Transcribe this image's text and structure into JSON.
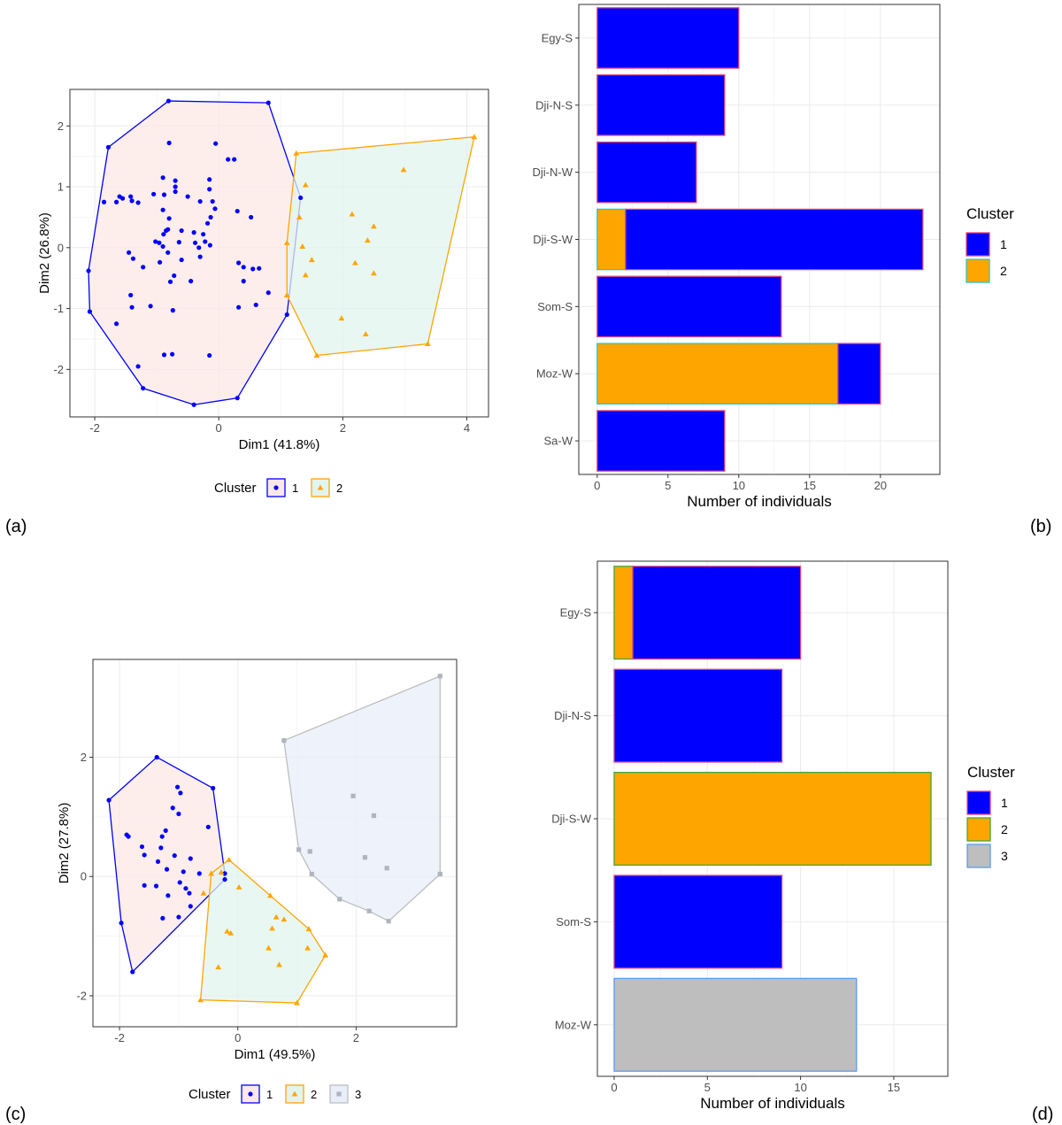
{
  "panel_labels": {
    "a": "(a)",
    "b": "(b)",
    "c": "(c)",
    "d": "(d)"
  },
  "colors": {
    "cluster1": "#0000FF",
    "cluster2": "#FFA500",
    "cluster3": "#BEBEBE",
    "hull1": "#FCE8E6",
    "hull2": "#E2F4EF",
    "hull3": "#E8EEFA",
    "point3": "#B0B4BC",
    "outline1": "#E0457A",
    "outline2_b": "#2EC4C4",
    "outline2_d": "#3DAA3D",
    "outline3_d": "#5C9AF0",
    "grid": "#EBEBEB",
    "frame": "#333333"
  },
  "chart_data": [
    {
      "id": "a",
      "type": "scatter",
      "title": "",
      "xlabel": "Dim1 (41.8%)",
      "ylabel": "Dim2 (26.8%)",
      "xlim": [
        -2.4,
        4.35
      ],
      "ylim": [
        -2.78,
        2.6
      ],
      "xticks": [
        -2,
        0,
        2,
        4
      ],
      "xtick_labels": [
        "-2",
        "0",
        "2",
        "4"
      ],
      "yticks": [
        -2,
        -1,
        0,
        1,
        2
      ],
      "ytick_labels": [
        "-2",
        "-1",
        "0",
        "1",
        "2"
      ],
      "grid": true,
      "legend": {
        "title": "Cluster",
        "position": "bottom",
        "entries": [
          "1",
          "2"
        ]
      },
      "series": [
        {
          "name": "1",
          "marker": "circle",
          "points": [
            [
              -0.81,
              2.41
            ],
            [
              0.8,
              2.38
            ],
            [
              -1.78,
              1.65
            ],
            [
              1.32,
              0.82
            ],
            [
              1.1,
              -1.1
            ],
            [
              0.3,
              -2.47
            ],
            [
              -0.4,
              -2.58
            ],
            [
              -1.22,
              -2.31
            ],
            [
              -2.08,
              -1.05
            ],
            [
              -2.1,
              -0.38
            ],
            [
              -0.8,
              1.72
            ],
            [
              -0.05,
              1.71
            ],
            [
              0.15,
              1.45
            ],
            [
              0.25,
              1.45
            ],
            [
              -0.9,
              1.15
            ],
            [
              -0.7,
              1.1
            ],
            [
              -0.7,
              1.0
            ],
            [
              -0.7,
              0.92
            ],
            [
              -0.15,
              1.12
            ],
            [
              -0.15,
              0.96
            ],
            [
              -1.6,
              0.84
            ],
            [
              -1.55,
              0.81
            ],
            [
              -1.42,
              0.84
            ],
            [
              -1.4,
              0.77
            ],
            [
              -1.65,
              0.75
            ],
            [
              -1.85,
              0.75
            ],
            [
              -1.3,
              0.74
            ],
            [
              -1.05,
              0.88
            ],
            [
              -0.88,
              0.87
            ],
            [
              -0.5,
              0.84
            ],
            [
              -0.3,
              0.76
            ],
            [
              -0.1,
              0.76
            ],
            [
              -0.06,
              0.64
            ],
            [
              0.3,
              0.6
            ],
            [
              0.52,
              0.5
            ],
            [
              -0.13,
              0.5
            ],
            [
              -0.18,
              0.4
            ],
            [
              -0.9,
              0.62
            ],
            [
              -0.8,
              0.48
            ],
            [
              -0.82,
              0.3
            ],
            [
              -0.85,
              0.28
            ],
            [
              -0.89,
              0.22
            ],
            [
              -0.6,
              0.28
            ],
            [
              -0.4,
              0.25
            ],
            [
              -0.25,
              0.22
            ],
            [
              -0.22,
              0.1
            ],
            [
              -0.14,
              0.04
            ],
            [
              -0.38,
              0.08
            ],
            [
              -0.64,
              0.09
            ],
            [
              -0.96,
              0.08
            ],
            [
              -1.02,
              0.1
            ],
            [
              -0.9,
              0.02
            ],
            [
              -0.82,
              -0.08
            ],
            [
              -1.45,
              -0.08
            ],
            [
              -1.38,
              -0.18
            ],
            [
              -1.22,
              -0.32
            ],
            [
              -0.95,
              -0.24
            ],
            [
              -0.6,
              -0.2
            ],
            [
              -0.32,
              0.0
            ],
            [
              -0.3,
              -0.15
            ],
            [
              -0.72,
              -0.46
            ],
            [
              -0.78,
              -0.56
            ],
            [
              -0.45,
              -0.55
            ],
            [
              0.32,
              -0.25
            ],
            [
              0.4,
              -0.32
            ],
            [
              0.55,
              -0.35
            ],
            [
              0.65,
              -0.34
            ],
            [
              0.4,
              -0.55
            ],
            [
              0.8,
              -0.74
            ],
            [
              0.32,
              -0.98
            ],
            [
              0.6,
              -0.94
            ],
            [
              -1.42,
              -0.78
            ],
            [
              -1.1,
              -0.96
            ],
            [
              -1.4,
              -0.98
            ],
            [
              -0.74,
              -1.03
            ],
            [
              -1.65,
              -1.25
            ],
            [
              -0.75,
              -1.75
            ],
            [
              -0.88,
              -1.76
            ],
            [
              -0.15,
              -1.77
            ],
            [
              -1.3,
              -1.95
            ]
          ],
          "hull": [
            [
              -0.81,
              2.41
            ],
            [
              0.8,
              2.38
            ],
            [
              1.32,
              0.82
            ],
            [
              1.1,
              -1.1
            ],
            [
              0.3,
              -2.47
            ],
            [
              -0.4,
              -2.58
            ],
            [
              -1.22,
              -2.31
            ],
            [
              -2.08,
              -1.05
            ],
            [
              -2.1,
              -0.38
            ],
            [
              -1.78,
              1.65
            ]
          ]
        },
        {
          "name": "2",
          "marker": "triangle",
          "points": [
            [
              4.12,
              1.82
            ],
            [
              1.25,
              1.55
            ],
            [
              2.98,
              1.28
            ],
            [
              1.4,
              1.03
            ],
            [
              1.3,
              0.5
            ],
            [
              2.15,
              0.55
            ],
            [
              2.5,
              0.35
            ],
            [
              2.4,
              0.12
            ],
            [
              1.1,
              0.08
            ],
            [
              1.35,
              0.02
            ],
            [
              1.5,
              -0.2
            ],
            [
              2.2,
              -0.25
            ],
            [
              2.5,
              -0.42
            ],
            [
              1.4,
              -0.45
            ],
            [
              1.1,
              -0.78
            ],
            [
              1.98,
              -1.16
            ],
            [
              2.37,
              -1.42
            ],
            [
              1.58,
              -1.77
            ],
            [
              3.37,
              -1.58
            ]
          ],
          "hull": [
            [
              4.12,
              1.82
            ],
            [
              3.37,
              -1.58
            ],
            [
              1.58,
              -1.77
            ],
            [
              1.1,
              -0.78
            ],
            [
              1.1,
              0.08
            ],
            [
              1.25,
              1.55
            ]
          ]
        }
      ]
    },
    {
      "id": "b",
      "type": "bar",
      "orientation": "horizontal",
      "stacked": true,
      "xlabel": "Number of individuals",
      "ylabel": "",
      "xlim": [
        -1.3,
        24.2
      ],
      "xticks": [
        0,
        5,
        10,
        15,
        20
      ],
      "xtick_labels": [
        "0",
        "5",
        "10",
        "15",
        "20"
      ],
      "categories": [
        "Egy-S",
        "Dji-N-S",
        "Dji-N-W",
        "Dji-S-W",
        "Som-S",
        "Moz-W",
        "Sa-W"
      ],
      "series": [
        {
          "name": "2",
          "values": [
            0,
            0,
            0,
            2,
            0,
            17,
            0
          ]
        },
        {
          "name": "1",
          "values": [
            10,
            9,
            7,
            21,
            13,
            3,
            9
          ]
        }
      ],
      "grid": true,
      "legend": {
        "title": "Cluster",
        "position": "right",
        "entries": [
          "1",
          "2"
        ]
      }
    },
    {
      "id": "c",
      "type": "scatter",
      "title": "",
      "xlabel": "Dim1 (49.5%)",
      "ylabel": "Dim2 (27.8%)",
      "xlim": [
        -2.45,
        3.7
      ],
      "ylim": [
        -2.52,
        3.64
      ],
      "xticks": [
        -2,
        0,
        2
      ],
      "xtick_labels": [
        "-2",
        "0",
        "2"
      ],
      "yticks": [
        -2,
        0,
        2
      ],
      "ytick_labels": [
        "-2",
        "0",
        "2"
      ],
      "grid": true,
      "legend": {
        "title": "Cluster",
        "position": "bottom",
        "entries": [
          "1",
          "2",
          "3"
        ]
      },
      "series": [
        {
          "name": "1",
          "marker": "circle",
          "points": [
            [
              -1.37,
              2.0
            ],
            [
              -0.42,
              1.48
            ],
            [
              -2.18,
              1.28
            ],
            [
              -1.02,
              1.5
            ],
            [
              -0.97,
              1.4
            ],
            [
              -1.1,
              1.15
            ],
            [
              -1.0,
              1.05
            ],
            [
              -0.5,
              0.83
            ],
            [
              -1.88,
              0.7
            ],
            [
              -1.85,
              0.67
            ],
            [
              -1.22,
              0.77
            ],
            [
              -1.28,
              0.67
            ],
            [
              -1.62,
              0.5
            ],
            [
              -1.3,
              0.48
            ],
            [
              -1.58,
              0.36
            ],
            [
              -1.07,
              0.35
            ],
            [
              -0.8,
              0.3
            ],
            [
              -1.35,
              0.25
            ],
            [
              -1.2,
              0.12
            ],
            [
              -0.92,
              0.08
            ],
            [
              -0.65,
              0.05
            ],
            [
              -1.58,
              -0.15
            ],
            [
              -1.38,
              -0.16
            ],
            [
              -0.98,
              -0.1
            ],
            [
              -0.88,
              -0.2
            ],
            [
              -1.18,
              -0.32
            ],
            [
              -0.82,
              -0.28
            ],
            [
              -0.8,
              -0.5
            ],
            [
              -1.27,
              -0.7
            ],
            [
              -1.0,
              -0.68
            ],
            [
              -1.97,
              -0.78
            ],
            [
              -1.78,
              -1.6
            ],
            [
              -0.22,
              -0.05
            ],
            [
              -0.22,
              0.05
            ]
          ],
          "hull": [
            [
              -1.37,
              2.0
            ],
            [
              -0.42,
              1.48
            ],
            [
              -0.22,
              0.05
            ],
            [
              -0.22,
              -0.05
            ],
            [
              -1.78,
              -1.6
            ],
            [
              -1.97,
              -0.78
            ],
            [
              -2.18,
              1.28
            ]
          ]
        },
        {
          "name": "2",
          "marker": "triangle",
          "points": [
            [
              -0.15,
              0.28
            ],
            [
              -0.45,
              0.05
            ],
            [
              -0.28,
              0.07
            ],
            [
              0.02,
              -0.18
            ],
            [
              -0.58,
              -0.28
            ],
            [
              0.55,
              -0.32
            ],
            [
              0.65,
              -0.68
            ],
            [
              0.78,
              -0.72
            ],
            [
              0.58,
              -0.87
            ],
            [
              -0.18,
              -0.92
            ],
            [
              -0.12,
              -0.95
            ],
            [
              1.2,
              -0.88
            ],
            [
              0.52,
              -1.2
            ],
            [
              1.18,
              -1.2
            ],
            [
              0.7,
              -1.48
            ],
            [
              -0.33,
              -1.52
            ],
            [
              1.48,
              -1.32
            ],
            [
              1.0,
              -2.12
            ],
            [
              -0.63,
              -2.07
            ]
          ],
          "hull": [
            [
              -0.15,
              0.28
            ],
            [
              1.2,
              -0.88
            ],
            [
              1.48,
              -1.32
            ],
            [
              1.0,
              -2.12
            ],
            [
              -0.63,
              -2.07
            ],
            [
              -0.45,
              0.05
            ]
          ]
        },
        {
          "name": "3",
          "marker": "square",
          "points": [
            [
              3.42,
              3.36
            ],
            [
              0.78,
              2.28
            ],
            [
              1.95,
              1.35
            ],
            [
              2.3,
              1.02
            ],
            [
              1.03,
              0.45
            ],
            [
              1.22,
              0.42
            ],
            [
              2.15,
              0.32
            ],
            [
              2.52,
              0.14
            ],
            [
              1.25,
              0.04
            ],
            [
              3.42,
              0.04
            ],
            [
              1.72,
              -0.38
            ],
            [
              2.22,
              -0.58
            ],
            [
              2.55,
              -0.75
            ]
          ],
          "hull": [
            [
              3.42,
              3.36
            ],
            [
              3.42,
              0.04
            ],
            [
              2.55,
              -0.75
            ],
            [
              2.22,
              -0.58
            ],
            [
              1.72,
              -0.38
            ],
            [
              1.25,
              0.04
            ],
            [
              1.03,
              0.45
            ],
            [
              0.78,
              2.28
            ]
          ]
        }
      ]
    },
    {
      "id": "d",
      "type": "bar",
      "orientation": "horizontal",
      "stacked": true,
      "xlabel": "Number of individuals",
      "ylabel": "",
      "xlim": [
        -0.9,
        17.9
      ],
      "xticks": [
        0,
        5,
        10,
        15
      ],
      "xtick_labels": [
        "0",
        "5",
        "10",
        "15"
      ],
      "categories": [
        "Egy-S",
        "Dji-N-S",
        "Dji-S-W",
        "Som-S",
        "Moz-W"
      ],
      "series": [
        {
          "name": "2",
          "values": [
            1,
            0,
            17,
            0,
            0
          ]
        },
        {
          "name": "1",
          "values": [
            9,
            9,
            0,
            9,
            0
          ]
        },
        {
          "name": "3",
          "values": [
            0,
            0,
            0,
            0,
            13
          ]
        }
      ],
      "grid": true,
      "legend": {
        "title": "Cluster",
        "position": "right",
        "entries": [
          "1",
          "2",
          "3"
        ]
      }
    }
  ]
}
